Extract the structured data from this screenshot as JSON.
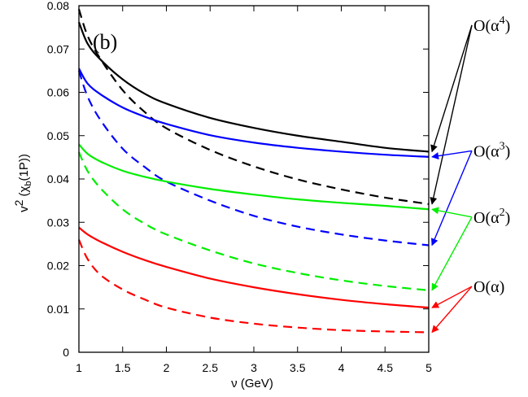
{
  "chart_data": {
    "type": "line",
    "title": "",
    "panel_label": "(b)",
    "xlabel": "ν (GeV)",
    "ylabel": {
      "base": "v",
      "sup": "2",
      "mid": " (χ",
      "sub": "b",
      "tail": "(1P))"
    },
    "xlim": [
      1,
      5
    ],
    "ylim": [
      0,
      0.08
    ],
    "x_ticks": [
      "1",
      "1.5",
      "2",
      "2.5",
      "3",
      "3.5",
      "4",
      "4.5",
      "5"
    ],
    "x_tick_values": [
      1,
      1.5,
      2,
      2.5,
      3,
      3.5,
      4,
      4.5,
      5
    ],
    "y_ticks": [
      "0",
      "0.01",
      "0.02",
      "0.03",
      "0.04",
      "0.05",
      "0.06",
      "0.07",
      "0.08"
    ],
    "y_tick_values": [
      0,
      0.01,
      0.02,
      0.03,
      0.04,
      0.05,
      0.06,
      0.07,
      0.08
    ],
    "grid": false,
    "x": [
      1.0,
      1.1,
      1.25,
      1.5,
      1.75,
      2.0,
      2.5,
      3.0,
      3.5,
      4.0,
      4.5,
      5.0
    ],
    "series": [
      {
        "color": "#000000",
        "dash": "solid",
        "values": [
          0.0762,
          0.0712,
          0.0675,
          0.063,
          0.0597,
          0.0574,
          0.0541,
          0.0518,
          0.05,
          0.0486,
          0.0472,
          0.0463
        ]
      },
      {
        "color": "#000000",
        "dash": "dashed",
        "values": [
          0.0792,
          0.073,
          0.0676,
          0.0605,
          0.0555,
          0.0517,
          0.0467,
          0.0429,
          0.0399,
          0.0376,
          0.0357,
          0.0342
        ]
      },
      {
        "color": "#0000ff",
        "dash": "solid",
        "values": [
          0.0655,
          0.062,
          0.0595,
          0.0565,
          0.0544,
          0.0527,
          0.0501,
          0.0484,
          0.0472,
          0.0463,
          0.0456,
          0.0451
        ]
      },
      {
        "color": "#0000ff",
        "dash": "dashed",
        "values": [
          0.065,
          0.059,
          0.0535,
          0.047,
          0.0428,
          0.0394,
          0.035,
          0.0315,
          0.029,
          0.0272,
          0.0258,
          0.0247
        ]
      },
      {
        "color": "#00ee00",
        "dash": "solid",
        "values": [
          0.048,
          0.0458,
          0.044,
          0.0419,
          0.0405,
          0.0394,
          0.0377,
          0.0364,
          0.0353,
          0.0345,
          0.0338,
          0.033
        ]
      },
      {
        "color": "#00ee00",
        "dash": "dashed",
        "values": [
          0.0462,
          0.0418,
          0.0378,
          0.033,
          0.0297,
          0.0272,
          0.0235,
          0.0205,
          0.0183,
          0.0166,
          0.0153,
          0.0143
        ]
      },
      {
        "color": "#ff0000",
        "dash": "solid",
        "values": [
          0.0288,
          0.0272,
          0.0255,
          0.0232,
          0.0213,
          0.0197,
          0.017,
          0.015,
          0.0134,
          0.0121,
          0.0111,
          0.0103
        ]
      },
      {
        "color": "#ff0000",
        "dash": "dashed",
        "values": [
          0.026,
          0.0215,
          0.0178,
          0.0145,
          0.0122,
          0.0103,
          0.008,
          0.0066,
          0.0057,
          0.0051,
          0.0048,
          0.0046
        ]
      }
    ],
    "annotations": [
      {
        "text": "O(α",
        "sup": "4",
        "tail": ")",
        "color": "#000000",
        "series": [
          0,
          1
        ]
      },
      {
        "text": "O(α",
        "sup": "3",
        "tail": ")",
        "color": "#0000ff",
        "series": [
          2,
          3
        ]
      },
      {
        "text": "O(α",
        "sup": "2",
        "tail": ")",
        "color": "#00ee00",
        "series": [
          4,
          5
        ]
      },
      {
        "text": "O(α)",
        "sup": "",
        "tail": "",
        "color": "#ff0000",
        "series": [
          6,
          7
        ]
      }
    ]
  }
}
